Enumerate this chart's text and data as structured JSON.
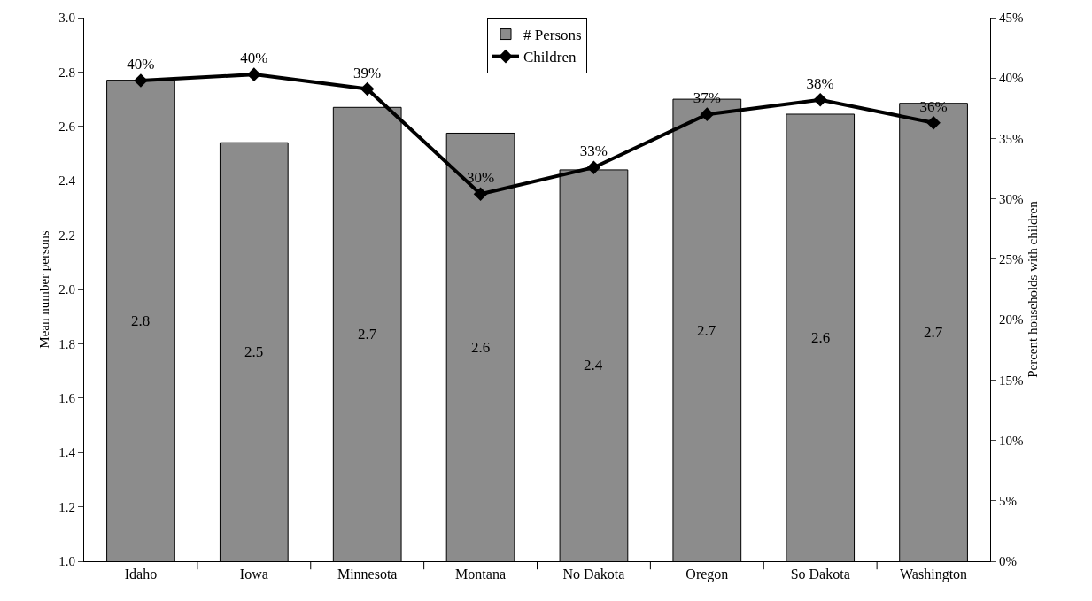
{
  "chart_data": {
    "type": "bar",
    "ylabel": "Mean number persons",
    "y2label": "Percent households with children",
    "categories": [
      "Idaho",
      "Iowa",
      "Minnesota",
      "Montana",
      "No Dakota",
      "Oregon",
      "So Dakota",
      "Washington"
    ],
    "series": [
      {
        "name": "# Persons",
        "color": "#8c8c8c",
        "values": [
          2.77,
          2.54,
          2.67,
          2.575,
          2.44,
          2.7,
          2.645,
          2.685
        ],
        "value_labels": [
          "2.8",
          "2.5",
          "2.7",
          "2.6",
          "2.4",
          "2.7",
          "2.6",
          "2.7"
        ]
      },
      {
        "name": "Children",
        "type": "line",
        "axis": "y2",
        "color": "#000000",
        "values": [
          39.8,
          40.3,
          39.1,
          30.4,
          32.6,
          37.0,
          38.2,
          36.3
        ],
        "value_labels": [
          "40%",
          "40%",
          "39%",
          "30%",
          "33%",
          "37%",
          "38%",
          "36%"
        ]
      }
    ],
    "ylim": [
      1,
      3
    ],
    "yticks": [
      {
        "value": 1,
        "label": "1.0"
      },
      {
        "value": 1.2,
        "label": "1.2"
      },
      {
        "value": 1.4,
        "label": "1.4"
      },
      {
        "value": 1.6,
        "label": "1.6"
      },
      {
        "value": 1.8,
        "label": "1.8"
      },
      {
        "value": 2,
        "label": "2.0"
      },
      {
        "value": 2.2,
        "label": "2.2"
      },
      {
        "value": 2.4,
        "label": "2.4"
      },
      {
        "value": 2.6,
        "label": "2.6"
      },
      {
        "value": 2.8,
        "label": "2.8"
      },
      {
        "value": 3,
        "label": "3.0"
      }
    ],
    "y2lim": [
      0,
      45
    ],
    "y2ticks": [
      {
        "value": 0,
        "label": "0%"
      },
      {
        "value": 5,
        "label": "5%"
      },
      {
        "value": 10,
        "label": "10%"
      },
      {
        "value": 15,
        "label": "15%"
      },
      {
        "value": 20,
        "label": "20%"
      },
      {
        "value": 25,
        "label": "25%"
      },
      {
        "value": 30,
        "label": "30%"
      },
      {
        "value": 35,
        "label": "35%"
      },
      {
        "value": 40,
        "label": "40%"
      },
      {
        "value": 45,
        "label": "45%"
      }
    ],
    "grid": false,
    "legend": "top",
    "marker": "diamond",
    "line_style": "solid"
  }
}
